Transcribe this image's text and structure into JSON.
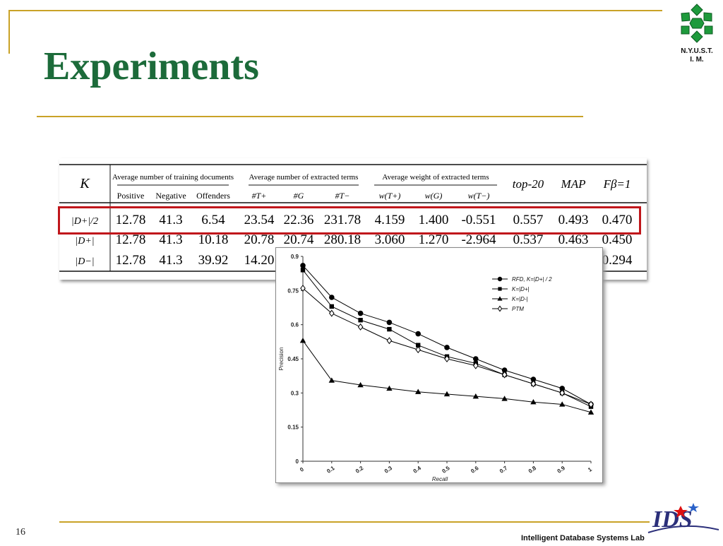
{
  "slide": {
    "title": "Experiments",
    "page_number": "16",
    "footer": "Intelligent Database Systems Lab",
    "logo_text": [
      "N.Y.U.S.T.",
      "I. M."
    ],
    "ids_logo_text": "IDS",
    "accent_color": "#c9a227",
    "title_color": "#1c6b3a",
    "highlight_color": "#c0161b"
  },
  "table": {
    "k_header": "K",
    "group_headers": [
      "Average number of training documents",
      "Average number of extracted terms",
      "Average weight of extracted terms"
    ],
    "sub_headers": [
      "Positive",
      "Negative",
      "Offenders",
      "#T+",
      "#G",
      "#T−",
      "w(T+)",
      "w(G)",
      "w(T−)"
    ],
    "metric_headers": [
      "top-20",
      "MAP",
      "Fβ=1"
    ],
    "rows": [
      {
        "k": "|D+|/2",
        "values": [
          "12.78",
          "41.3",
          "6.54",
          "23.54",
          "22.36",
          "231.78",
          "4.159",
          "1.400",
          "-0.551",
          "0.557",
          "0.493",
          "0.470"
        ]
      },
      {
        "k": "|D+|",
        "values": [
          "12.78",
          "41.3",
          "10.18",
          "20.78",
          "20.74",
          "280.18",
          "3.060",
          "1.270",
          "-2.964",
          "0.537",
          "0.463",
          "0.450"
        ]
      },
      {
        "k": "|D−|",
        "values": [
          "12.78",
          "41.3",
          "39.92",
          "14.20",
          "",
          "",
          "",
          "",
          "",
          "",
          "",
          "0.294"
        ]
      }
    ]
  },
  "chart_data": {
    "type": "line",
    "title": "",
    "xlabel": "Recall",
    "ylabel": "Precision",
    "x": [
      0,
      0.1,
      0.2,
      0.3,
      0.4,
      0.5,
      0.6,
      0.7,
      0.8,
      0.9,
      1
    ],
    "xticks": [
      "0",
      "0.1",
      "0.2",
      "0.3",
      "0.4",
      "0.5",
      "0.6",
      "0.7",
      "0.8",
      "0.9",
      "1"
    ],
    "yticks": [
      "0",
      "0.15",
      "0.3",
      "0.45",
      "0.6",
      "0.75",
      "0.9"
    ],
    "xlim": [
      0,
      1
    ],
    "ylim": [
      0,
      0.9
    ],
    "grid": false,
    "legend_position": "top-right",
    "series": [
      {
        "name": "RFD, K=|D+| / 2",
        "marker": "circle-filled",
        "values": [
          0.86,
          0.72,
          0.65,
          0.61,
          0.56,
          0.5,
          0.45,
          0.4,
          0.36,
          0.32,
          0.25
        ]
      },
      {
        "name": "K=|D+|",
        "marker": "square-filled",
        "values": [
          0.84,
          0.68,
          0.62,
          0.58,
          0.51,
          0.46,
          0.43,
          0.38,
          0.34,
          0.3,
          0.24
        ]
      },
      {
        "name": "K=|D-|",
        "marker": "triangle-filled",
        "values": [
          0.53,
          0.355,
          0.335,
          0.32,
          0.305,
          0.295,
          0.285,
          0.275,
          0.26,
          0.25,
          0.215
        ]
      },
      {
        "name": "PTM",
        "marker": "diamond-open",
        "values": [
          0.76,
          0.65,
          0.59,
          0.53,
          0.49,
          0.45,
          0.42,
          0.38,
          0.34,
          0.3,
          0.25
        ]
      }
    ]
  }
}
